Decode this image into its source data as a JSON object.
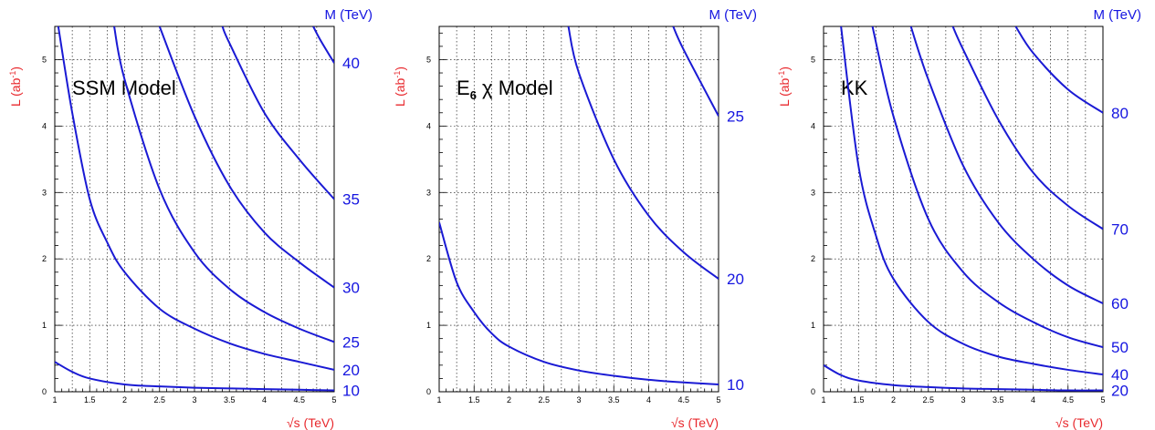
{
  "chart_data": [
    {
      "type": "line",
      "title": "SSM Model",
      "title_sub": "",
      "title_tail": "",
      "xlabel": "√s (TeV)",
      "ylabel": "L  (ab",
      "ylabel_sup": "-1",
      "ylabel_close": ")",
      "right_axis_label": "M (TeV)",
      "xlim": [
        1,
        5
      ],
      "ylim": [
        0,
        5.5
      ],
      "xticks": [
        "1",
        "1.5",
        "2",
        "2.5",
        "3",
        "3.5",
        "4",
        "4.5",
        "5"
      ],
      "yticks": [
        "0",
        "1",
        "2",
        "3",
        "4",
        "5"
      ],
      "series": [
        {
          "label": "10",
          "x": [
            1,
            1.25,
            1.5,
            2,
            2.5,
            3,
            3.5,
            4,
            4.5,
            5
          ],
          "y": [
            0.45,
            0.3,
            0.2,
            0.11,
            0.08,
            0.06,
            0.05,
            0.04,
            0.03,
            0.02
          ]
        },
        {
          "label": "20",
          "x": [
            1.05,
            1.25,
            1.5,
            1.75,
            2,
            2.5,
            3,
            3.5,
            4,
            4.5,
            5
          ],
          "y": [
            5.5,
            4.2,
            2.9,
            2.25,
            1.8,
            1.25,
            0.95,
            0.73,
            0.57,
            0.45,
            0.33
          ]
        },
        {
          "label": "25",
          "x": [
            1.85,
            2,
            2.5,
            3,
            3.5,
            4,
            4.5,
            5
          ],
          "y": [
            5.5,
            4.7,
            3.05,
            2.1,
            1.55,
            1.2,
            0.95,
            0.75
          ]
        },
        {
          "label": "30",
          "x": [
            2.5,
            3,
            3.5,
            4,
            4.5,
            5
          ],
          "y": [
            5.5,
            4.15,
            3.1,
            2.4,
            1.95,
            1.57
          ]
        },
        {
          "label": "35",
          "x": [
            3.4,
            3.5,
            4,
            4.5,
            5
          ],
          "y": [
            5.5,
            5.25,
            4.2,
            3.5,
            2.9
          ]
        },
        {
          "label": "40",
          "x": [
            4.7,
            4.8,
            5
          ],
          "y": [
            5.5,
            5.3,
            4.95
          ]
        }
      ]
    },
    {
      "type": "line",
      "title": "E",
      "title_sub": "6",
      "title_tail": " χ Model",
      "xlabel": "√s (TeV)",
      "ylabel": "L  (ab",
      "ylabel_sup": "-1",
      "ylabel_close": ")",
      "right_axis_label": "M (TeV)",
      "xlim": [
        1,
        5
      ],
      "ylim": [
        0,
        5.5
      ],
      "xticks": [
        "1",
        "1.5",
        "2",
        "2.5",
        "3",
        "3.5",
        "4",
        "4.5",
        "5"
      ],
      "yticks": [
        "0",
        "1",
        "2",
        "3",
        "4",
        "5"
      ],
      "series": [
        {
          "label": "10",
          "x": [
            1,
            1.25,
            1.5,
            1.75,
            2,
            2.5,
            3,
            3.5,
            4,
            4.5,
            5
          ],
          "y": [
            2.55,
            1.65,
            1.2,
            0.88,
            0.68,
            0.45,
            0.32,
            0.24,
            0.18,
            0.14,
            0.11
          ]
        },
        {
          "label": "20",
          "x": [
            2.85,
            3,
            3.5,
            4,
            4.5,
            5
          ],
          "y": [
            5.5,
            4.8,
            3.5,
            2.65,
            2.1,
            1.7
          ]
        },
        {
          "label": "25",
          "x": [
            4.35,
            4.5,
            5
          ],
          "y": [
            5.5,
            5.15,
            4.15
          ]
        }
      ]
    },
    {
      "type": "line",
      "title": "KK",
      "title_sub": "",
      "title_tail": "",
      "xlabel": "√s (TeV)",
      "ylabel": "L  (ab",
      "ylabel_sup": "-1",
      "ylabel_close": ")",
      "right_axis_label": "M (TeV)",
      "xlim": [
        1,
        5
      ],
      "ylim": [
        0,
        5.5
      ],
      "xticks": [
        "1",
        "1.5",
        "2",
        "2.5",
        "3",
        "3.5",
        "4",
        "4.5",
        "5"
      ],
      "yticks": [
        "0",
        "1",
        "2",
        "3",
        "4",
        "5"
      ],
      "series": [
        {
          "label": "20",
          "x": [
            1,
            1.25,
            1.5,
            2,
            2.5,
            3,
            3.5,
            4,
            4.5,
            5
          ],
          "y": [
            0.4,
            0.25,
            0.17,
            0.1,
            0.07,
            0.05,
            0.04,
            0.03,
            0.02,
            0.02
          ]
        },
        {
          "label": "40",
          "x": [
            1.25,
            1.5,
            1.75,
            2,
            2.5,
            3,
            3.5,
            4,
            4.5,
            5
          ],
          "y": [
            5.5,
            3.4,
            2.35,
            1.7,
            1.05,
            0.72,
            0.53,
            0.42,
            0.33,
            0.26
          ]
        },
        {
          "label": "50",
          "x": [
            1.7,
            2,
            2.5,
            3,
            3.5,
            4,
            4.5,
            5
          ],
          "y": [
            5.5,
            4.15,
            2.6,
            1.8,
            1.35,
            1.05,
            0.82,
            0.67
          ]
        },
        {
          "label": "60",
          "x": [
            2.25,
            2.5,
            3,
            3.5,
            4,
            4.5,
            5
          ],
          "y": [
            5.5,
            4.7,
            3.4,
            2.55,
            2.0,
            1.6,
            1.33
          ]
        },
        {
          "label": "70",
          "x": [
            2.85,
            3,
            3.5,
            4,
            4.5,
            5
          ],
          "y": [
            5.5,
            5.15,
            4.1,
            3.3,
            2.8,
            2.45
          ]
        },
        {
          "label": "80",
          "x": [
            3.75,
            4,
            4.5,
            5
          ],
          "y": [
            5.5,
            5.1,
            4.55,
            4.2
          ]
        }
      ]
    }
  ]
}
